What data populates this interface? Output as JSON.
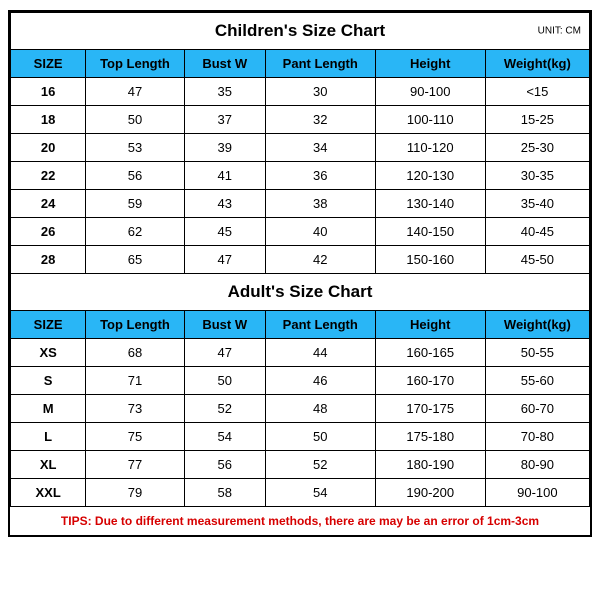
{
  "colors": {
    "header_bg": "#29b6f6",
    "frame_border": "#000000",
    "tips_color": "#d60000",
    "background": "#ffffff"
  },
  "column_widths_pct": [
    13,
    17,
    14,
    19,
    19,
    18
  ],
  "children": {
    "title": "Children's Size Chart",
    "unit": "UNIT: CM",
    "columns": [
      "SIZE",
      "Top Length",
      "Bust W",
      "Pant Length",
      "Height",
      "Weight(kg)"
    ],
    "rows": [
      [
        "16",
        "47",
        "35",
        "30",
        "90-100",
        "<15"
      ],
      [
        "18",
        "50",
        "37",
        "32",
        "100-110",
        "15-25"
      ],
      [
        "20",
        "53",
        "39",
        "34",
        "110-120",
        "25-30"
      ],
      [
        "22",
        "56",
        "41",
        "36",
        "120-130",
        "30-35"
      ],
      [
        "24",
        "59",
        "43",
        "38",
        "130-140",
        "35-40"
      ],
      [
        "26",
        "62",
        "45",
        "40",
        "140-150",
        "40-45"
      ],
      [
        "28",
        "65",
        "47",
        "42",
        "150-160",
        "45-50"
      ]
    ]
  },
  "adult": {
    "title": "Adult's Size Chart",
    "columns": [
      "SIZE",
      "Top Length",
      "Bust W",
      "Pant Length",
      "Height",
      "Weight(kg)"
    ],
    "rows": [
      [
        "XS",
        "68",
        "47",
        "44",
        "160-165",
        "50-55"
      ],
      [
        "S",
        "71",
        "50",
        "46",
        "160-170",
        "55-60"
      ],
      [
        "M",
        "73",
        "52",
        "48",
        "170-175",
        "60-70"
      ],
      [
        "L",
        "75",
        "54",
        "50",
        "175-180",
        "70-80"
      ],
      [
        "XL",
        "77",
        "56",
        "52",
        "180-190",
        "80-90"
      ],
      [
        "XXL",
        "79",
        "58",
        "54",
        "190-200",
        "90-100"
      ]
    ]
  },
  "tips": "TIPS: Due to different measurement methods, there are may be an error of 1cm-3cm"
}
